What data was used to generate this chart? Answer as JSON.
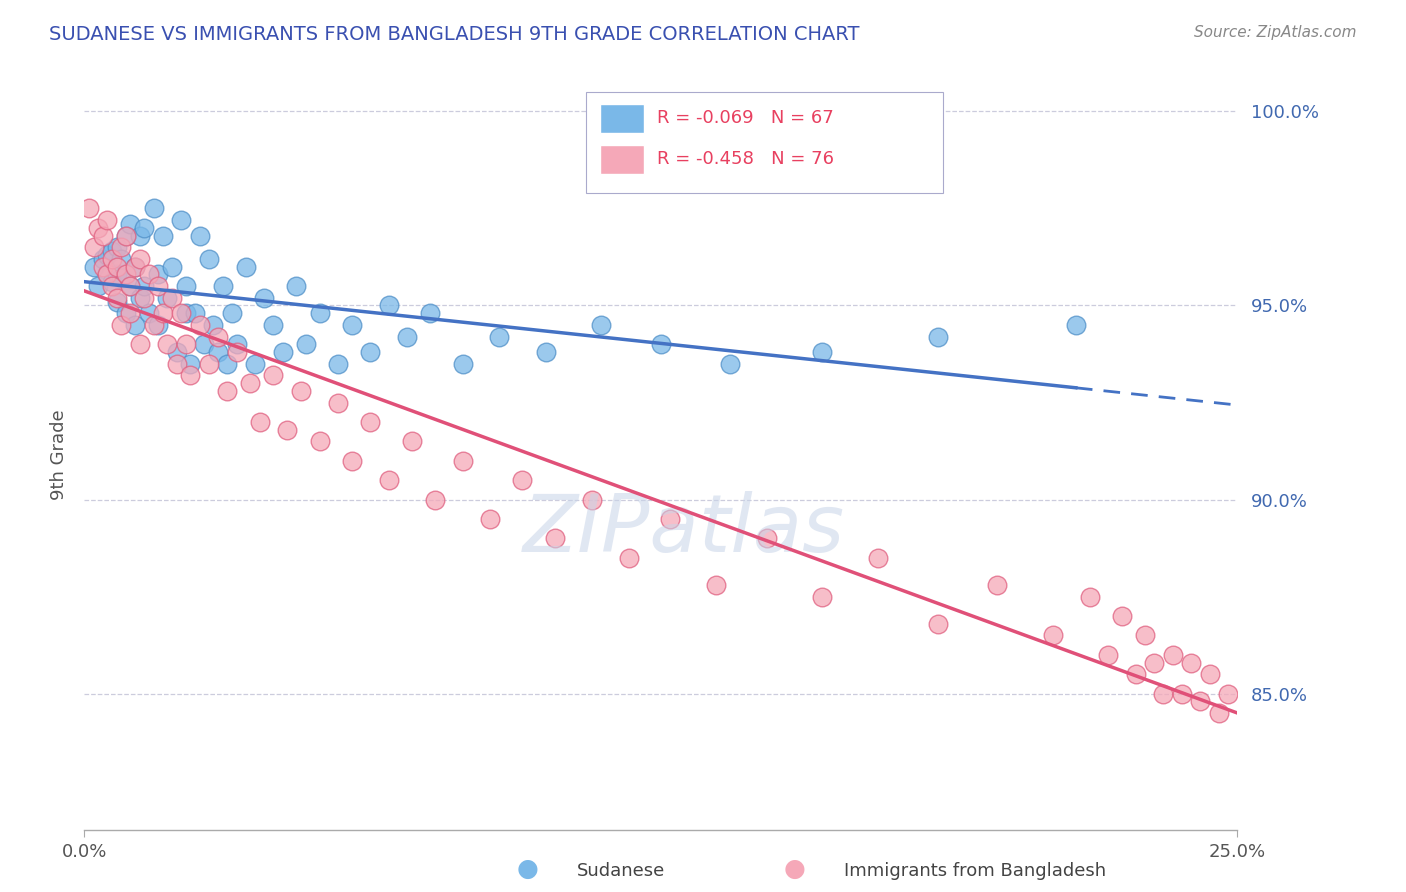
{
  "title": "SUDANESE VS IMMIGRANTS FROM BANGLADESH 9TH GRADE CORRELATION CHART",
  "source": "Source: ZipAtlas.com",
  "ylabel": "9th Grade",
  "xmin": 0.0,
  "xmax": 0.25,
  "ymin": 0.815,
  "ymax": 1.008,
  "yticks": [
    0.85,
    0.9,
    0.95,
    1.0
  ],
  "ytick_labels": [
    "85.0%",
    "90.0%",
    "95.0%",
    "100.0%"
  ],
  "blue_R": -0.069,
  "blue_N": 67,
  "pink_R": -0.458,
  "pink_N": 76,
  "blue_color": "#7ab8e8",
  "blue_edge": "#5090c8",
  "pink_color": "#f5a8b8",
  "pink_edge": "#e06080",
  "blue_line_color": "#4472c4",
  "pink_line_color": "#e05078",
  "blue_label": "Sudanese",
  "pink_label": "Immigrants from Bangladesh",
  "legend_R_color": "#e84060",
  "legend_N_color": "#4169b0",
  "title_color": "#3a50b0",
  "axis_color": "#4169b0",
  "grid_color": "#ccccdd",
  "watermark": "ZIPatlas",
  "watermark_color": "#c8d4e8",
  "blue_x": [
    0.002,
    0.003,
    0.004,
    0.005,
    0.005,
    0.006,
    0.006,
    0.007,
    0.007,
    0.007,
    0.008,
    0.008,
    0.009,
    0.009,
    0.01,
    0.01,
    0.011,
    0.011,
    0.012,
    0.012,
    0.013,
    0.013,
    0.014,
    0.015,
    0.016,
    0.016,
    0.017,
    0.018,
    0.019,
    0.02,
    0.021,
    0.022,
    0.022,
    0.023,
    0.024,
    0.025,
    0.026,
    0.027,
    0.028,
    0.029,
    0.03,
    0.031,
    0.032,
    0.033,
    0.035,
    0.037,
    0.039,
    0.041,
    0.043,
    0.046,
    0.048,
    0.051,
    0.055,
    0.058,
    0.062,
    0.066,
    0.07,
    0.075,
    0.082,
    0.09,
    0.1,
    0.112,
    0.125,
    0.14,
    0.16,
    0.185,
    0.215
  ],
  "blue_y": [
    0.96,
    0.955,
    0.962,
    0.958,
    0.963,
    0.956,
    0.964,
    0.958,
    0.951,
    0.965,
    0.962,
    0.957,
    0.948,
    0.968,
    0.955,
    0.971,
    0.96,
    0.945,
    0.968,
    0.952,
    0.97,
    0.955,
    0.948,
    0.975,
    0.958,
    0.945,
    0.968,
    0.952,
    0.96,
    0.938,
    0.972,
    0.948,
    0.955,
    0.935,
    0.948,
    0.968,
    0.94,
    0.962,
    0.945,
    0.938,
    0.955,
    0.935,
    0.948,
    0.94,
    0.96,
    0.935,
    0.952,
    0.945,
    0.938,
    0.955,
    0.94,
    0.948,
    0.935,
    0.945,
    0.938,
    0.95,
    0.942,
    0.948,
    0.935,
    0.942,
    0.938,
    0.945,
    0.94,
    0.935,
    0.938,
    0.942,
    0.945
  ],
  "pink_x": [
    0.001,
    0.002,
    0.003,
    0.004,
    0.004,
    0.005,
    0.005,
    0.006,
    0.006,
    0.007,
    0.007,
    0.008,
    0.008,
    0.009,
    0.009,
    0.01,
    0.01,
    0.011,
    0.012,
    0.012,
    0.013,
    0.014,
    0.015,
    0.016,
    0.017,
    0.018,
    0.019,
    0.02,
    0.021,
    0.022,
    0.023,
    0.025,
    0.027,
    0.029,
    0.031,
    0.033,
    0.036,
    0.038,
    0.041,
    0.044,
    0.047,
    0.051,
    0.055,
    0.058,
    0.062,
    0.066,
    0.071,
    0.076,
    0.082,
    0.088,
    0.095,
    0.102,
    0.11,
    0.118,
    0.127,
    0.137,
    0.148,
    0.16,
    0.172,
    0.185,
    0.198,
    0.21,
    0.218,
    0.222,
    0.225,
    0.228,
    0.23,
    0.232,
    0.234,
    0.236,
    0.238,
    0.24,
    0.242,
    0.244,
    0.246,
    0.248
  ],
  "pink_y": [
    0.975,
    0.965,
    0.97,
    0.96,
    0.968,
    0.958,
    0.972,
    0.955,
    0.962,
    0.96,
    0.952,
    0.965,
    0.945,
    0.958,
    0.968,
    0.948,
    0.955,
    0.96,
    0.962,
    0.94,
    0.952,
    0.958,
    0.945,
    0.955,
    0.948,
    0.94,
    0.952,
    0.935,
    0.948,
    0.94,
    0.932,
    0.945,
    0.935,
    0.942,
    0.928,
    0.938,
    0.93,
    0.92,
    0.932,
    0.918,
    0.928,
    0.915,
    0.925,
    0.91,
    0.92,
    0.905,
    0.915,
    0.9,
    0.91,
    0.895,
    0.905,
    0.89,
    0.9,
    0.885,
    0.895,
    0.878,
    0.89,
    0.875,
    0.885,
    0.868,
    0.878,
    0.865,
    0.875,
    0.86,
    0.87,
    0.855,
    0.865,
    0.858,
    0.85,
    0.86,
    0.85,
    0.858,
    0.848,
    0.855,
    0.845,
    0.85
  ]
}
